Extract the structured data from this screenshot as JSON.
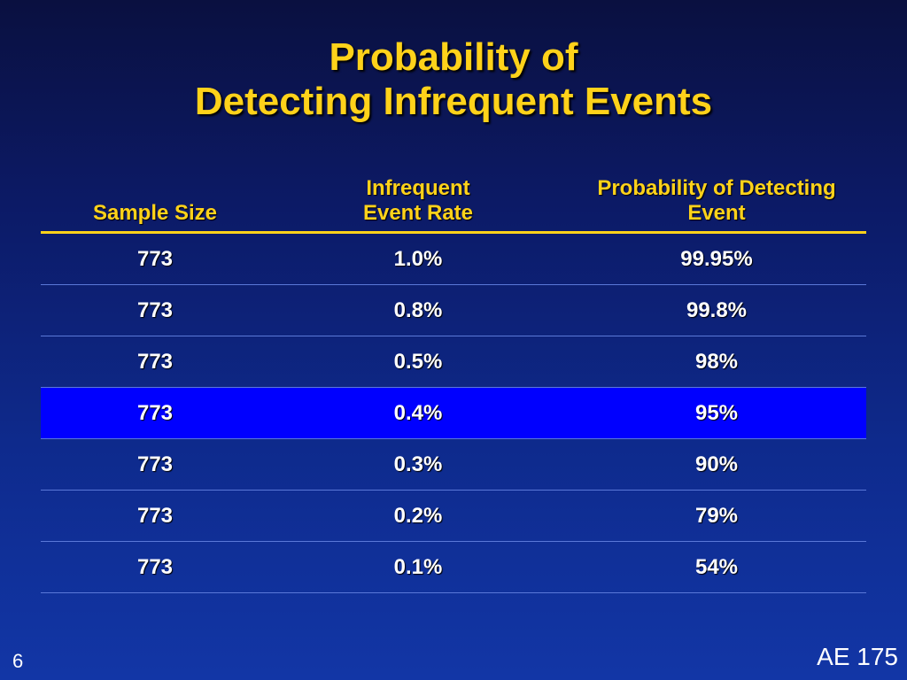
{
  "title": {
    "line1": "Probability of",
    "line2": "Detecting Infrequent Events"
  },
  "table": {
    "headers": {
      "sample_size": "Sample Size",
      "event_rate_line1": "Infrequent",
      "event_rate_line2": "Event Rate",
      "probability_line1": "Probability of Detecting",
      "probability_line2": "Event"
    },
    "rows": [
      {
        "sample_size": "773",
        "event_rate": "1.0%",
        "probability": "99.95%",
        "highlighted": false
      },
      {
        "sample_size": "773",
        "event_rate": "0.8%",
        "probability": "99.8%",
        "highlighted": false
      },
      {
        "sample_size": "773",
        "event_rate": "0.5%",
        "probability": "98%",
        "highlighted": false
      },
      {
        "sample_size": "773",
        "event_rate": "0.4%",
        "probability": "95%",
        "highlighted": true
      },
      {
        "sample_size": "773",
        "event_rate": "0.3%",
        "probability": "90%",
        "highlighted": false
      },
      {
        "sample_size": "773",
        "event_rate": "0.2%",
        "probability": "79%",
        "highlighted": false
      },
      {
        "sample_size": "773",
        "event_rate": "0.1%",
        "probability": "54%",
        "highlighted": false
      }
    ]
  },
  "page_number": "6",
  "footer_label": "AE 175",
  "colors": {
    "title": "#ffd21a",
    "highlight_row": "#0000ff",
    "cell_text": "#ffffff"
  }
}
